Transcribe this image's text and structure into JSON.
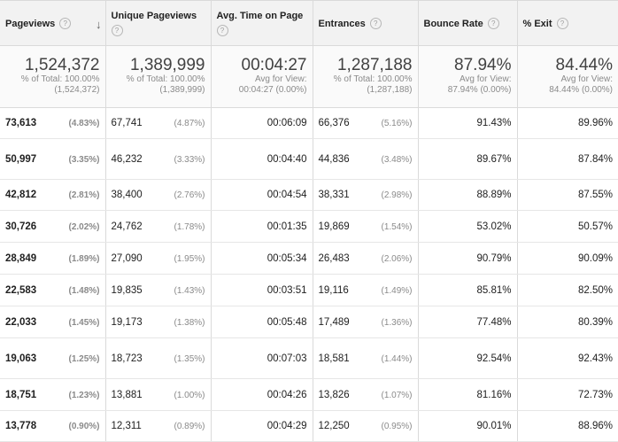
{
  "columns": [
    {
      "label": "Pageviews",
      "help": "?"
    },
    {
      "label": "Unique Pageviews",
      "help": "?"
    },
    {
      "label": "Avg. Time on Page",
      "help": "?"
    },
    {
      "label": "Entrances",
      "help": "?"
    },
    {
      "label": "Bounce Rate",
      "help": "?"
    },
    {
      "label": "% Exit",
      "help": "?"
    }
  ],
  "sort_icon": "arrow-down-icon",
  "summary": [
    {
      "value": "1,524,372",
      "line1": "% of Total: 100.00%",
      "line2": "(1,524,372)"
    },
    {
      "value": "1,389,999",
      "line1": "% of Total: 100.00%",
      "line2": "(1,389,999)"
    },
    {
      "value": "00:04:27",
      "line1": "Avg for View:",
      "line2": "00:04:27 (0.00%)"
    },
    {
      "value": "1,287,188",
      "line1": "% of Total: 100.00%",
      "line2": "(1,287,188)"
    },
    {
      "value": "87.94%",
      "line1": "Avg for View:",
      "line2": "87.94% (0.00%)"
    },
    {
      "value": "84.44%",
      "line1": "Avg for View:",
      "line2": "84.44% (0.00%)"
    }
  ],
  "rows": [
    {
      "pv": "73,613",
      "pv_pct": "(4.83%)",
      "upv": "67,741",
      "upv_pct": "(4.87%)",
      "time": "00:06:09",
      "ent": "66,376",
      "ent_pct": "(5.16%)",
      "bounce": "91.43%",
      "exit": "89.96%"
    },
    {
      "pv": "50,997",
      "pv_pct": "(3.35%)",
      "upv": "46,232",
      "upv_pct": "(3.33%)",
      "time": "00:04:40",
      "ent": "44,836",
      "ent_pct": "(3.48%)",
      "bounce": "89.67%",
      "exit": "87.84%"
    },
    {
      "pv": "42,812",
      "pv_pct": "(2.81%)",
      "upv": "38,400",
      "upv_pct": "(2.76%)",
      "time": "00:04:54",
      "ent": "38,331",
      "ent_pct": "(2.98%)",
      "bounce": "88.89%",
      "exit": "87.55%"
    },
    {
      "pv": "30,726",
      "pv_pct": "(2.02%)",
      "upv": "24,762",
      "upv_pct": "(1.78%)",
      "time": "00:01:35",
      "ent": "19,869",
      "ent_pct": "(1.54%)",
      "bounce": "53.02%",
      "exit": "50.57%"
    },
    {
      "pv": "28,849",
      "pv_pct": "(1.89%)",
      "upv": "27,090",
      "upv_pct": "(1.95%)",
      "time": "00:05:34",
      "ent": "26,483",
      "ent_pct": "(2.06%)",
      "bounce": "90.79%",
      "exit": "90.09%"
    },
    {
      "pv": "22,583",
      "pv_pct": "(1.48%)",
      "upv": "19,835",
      "upv_pct": "(1.43%)",
      "time": "00:03:51",
      "ent": "19,116",
      "ent_pct": "(1.49%)",
      "bounce": "85.81%",
      "exit": "82.50%"
    },
    {
      "pv": "22,033",
      "pv_pct": "(1.45%)",
      "upv": "19,173",
      "upv_pct": "(1.38%)",
      "time": "00:05:48",
      "ent": "17,489",
      "ent_pct": "(1.36%)",
      "bounce": "77.48%",
      "exit": "80.39%"
    },
    {
      "pv": "19,063",
      "pv_pct": "(1.25%)",
      "upv": "18,723",
      "upv_pct": "(1.35%)",
      "time": "00:07:03",
      "ent": "18,581",
      "ent_pct": "(1.44%)",
      "bounce": "92.54%",
      "exit": "92.43%"
    },
    {
      "pv": "18,751",
      "pv_pct": "(1.23%)",
      "upv": "13,881",
      "upv_pct": "(1.00%)",
      "time": "00:04:26",
      "ent": "13,826",
      "ent_pct": "(1.07%)",
      "bounce": "81.16%",
      "exit": "72.73%"
    },
    {
      "pv": "13,778",
      "pv_pct": "(0.90%)",
      "upv": "12,311",
      "upv_pct": "(0.89%)",
      "time": "00:04:29",
      "ent": "12,250",
      "ent_pct": "(0.95%)",
      "bounce": "90.01%",
      "exit": "88.96%"
    }
  ]
}
